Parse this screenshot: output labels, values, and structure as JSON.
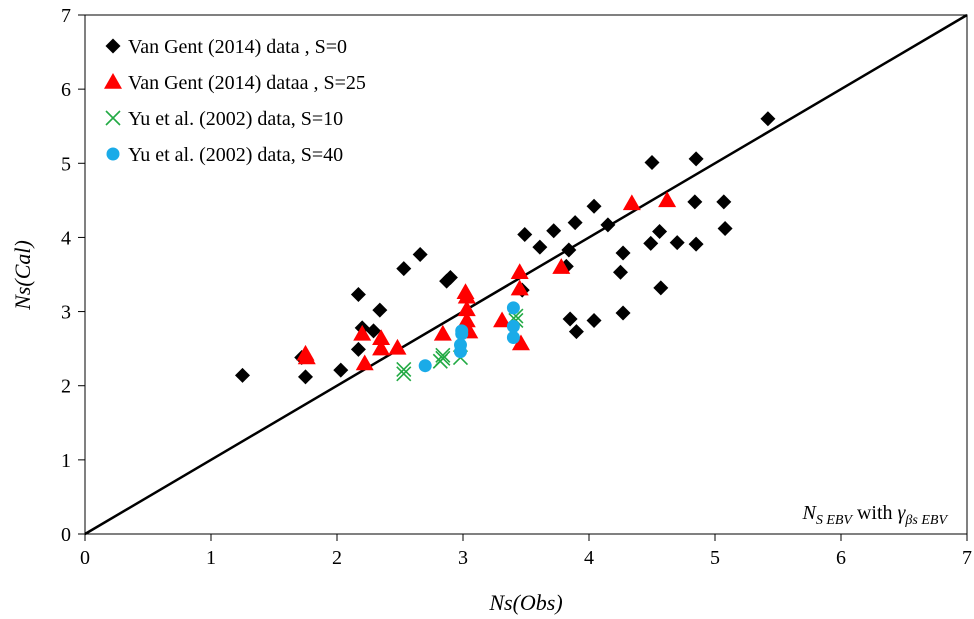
{
  "chart_data": {
    "type": "scatter",
    "title": "",
    "xlabel": "Ns(Obs)",
    "ylabel": "Ns(Cal)",
    "xlim": [
      0,
      7
    ],
    "ylim": [
      0,
      7
    ],
    "xticks": [
      "0",
      "1",
      "2",
      "3",
      "4",
      "5",
      "6",
      "7"
    ],
    "yticks": [
      "0",
      "1",
      "2",
      "3",
      "4",
      "5",
      "6",
      "7"
    ],
    "grid": false,
    "legend_position": "top-left",
    "reference_line": {
      "from": [
        0,
        0
      ],
      "to": [
        7,
        7
      ],
      "color": "#000000"
    },
    "annotation": {
      "main": "N",
      "sub1": "S EBV",
      "mid": " with ",
      "greek": "γ",
      "sub2": "βs EBV"
    },
    "series": [
      {
        "name": "Van Gent  (2014) data , S=0",
        "marker": "diamond",
        "color": "#000000",
        "points": [
          [
            1.25,
            2.14
          ],
          [
            1.72,
            2.38
          ],
          [
            1.75,
            2.12
          ],
          [
            2.03,
            2.21
          ],
          [
            2.17,
            2.49
          ],
          [
            2.17,
            3.23
          ],
          [
            2.2,
            2.78
          ],
          [
            2.29,
            2.74
          ],
          [
            2.34,
            3.02
          ],
          [
            2.53,
            3.58
          ],
          [
            2.66,
            3.77
          ],
          [
            2.87,
            3.41
          ],
          [
            2.9,
            3.46
          ],
          [
            3.47,
            3.29
          ],
          [
            3.49,
            4.04
          ],
          [
            3.61,
            3.87
          ],
          [
            3.72,
            4.09
          ],
          [
            3.82,
            3.61
          ],
          [
            3.84,
            3.83
          ],
          [
            3.85,
            2.9
          ],
          [
            3.89,
            4.2
          ],
          [
            3.9,
            2.73
          ],
          [
            4.04,
            4.42
          ],
          [
            4.04,
            2.88
          ],
          [
            4.15,
            4.17
          ],
          [
            4.25,
            3.53
          ],
          [
            4.27,
            3.79
          ],
          [
            4.27,
            2.98
          ],
          [
            4.49,
            3.92
          ],
          [
            4.5,
            5.01
          ],
          [
            4.56,
            4.08
          ],
          [
            4.57,
            3.32
          ],
          [
            4.7,
            3.93
          ],
          [
            4.84,
            4.48
          ],
          [
            4.85,
            5.06
          ],
          [
            4.85,
            3.91
          ],
          [
            5.07,
            4.48
          ],
          [
            5.08,
            4.12
          ],
          [
            5.42,
            5.6
          ]
        ]
      },
      {
        "name": "Van Gent  (2014) dataa , S=25",
        "marker": "triangle",
        "color": "#ff0000",
        "points": [
          [
            1.75,
            2.43
          ],
          [
            1.76,
            2.38
          ],
          [
            2.2,
            2.7
          ],
          [
            2.22,
            2.3
          ],
          [
            2.35,
            2.64
          ],
          [
            2.35,
            2.5
          ],
          [
            2.48,
            2.51
          ],
          [
            2.84,
            2.7
          ],
          [
            3.02,
            3.26
          ],
          [
            3.03,
            3.2
          ],
          [
            3.03,
            3.03
          ],
          [
            3.03,
            2.88
          ],
          [
            3.05,
            2.73
          ],
          [
            3.31,
            2.88
          ],
          [
            3.45,
            3.53
          ],
          [
            3.45,
            3.31
          ],
          [
            3.46,
            2.57
          ],
          [
            3.78,
            3.6
          ],
          [
            4.34,
            4.46
          ],
          [
            4.62,
            4.5
          ]
        ]
      },
      {
        "name": "Yu et al. (2002) data, S=10",
        "marker": "x",
        "color": "#22aa44",
        "points": [
          [
            2.53,
            2.16
          ],
          [
            2.53,
            2.22
          ],
          [
            2.82,
            2.33
          ],
          [
            2.84,
            2.37
          ],
          [
            2.84,
            2.41
          ],
          [
            2.98,
            2.38
          ],
          [
            3.42,
            2.94
          ],
          [
            3.42,
            2.88
          ]
        ]
      },
      {
        "name": "Yu et al. (2002) data, S=40",
        "marker": "circle",
        "color": "#1aabe8",
        "points": [
          [
            2.7,
            2.27
          ],
          [
            2.98,
            2.46
          ],
          [
            2.98,
            2.55
          ],
          [
            2.99,
            2.7
          ],
          [
            2.99,
            2.74
          ],
          [
            3.4,
            3.05
          ],
          [
            3.4,
            2.8
          ],
          [
            3.4,
            2.65
          ]
        ]
      }
    ]
  }
}
